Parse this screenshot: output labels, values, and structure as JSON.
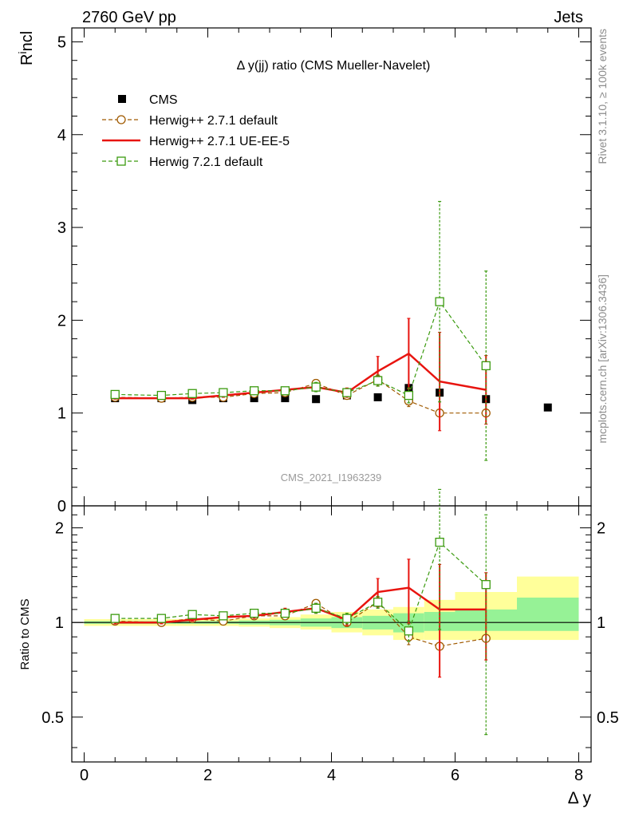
{
  "header": {
    "left": "2760 GeV pp",
    "right": "Jets"
  },
  "side_labels": {
    "rivet": "Rivet 3.1.10, ≥ 100k events",
    "mcplots": "mcplots.cern.ch [arXiv:1306.3436]"
  },
  "watermark": "CMS_2021_I1963239",
  "chart_data": [
    {
      "type": "scatter",
      "panel": "main",
      "title": "Δ y(jj) ratio (CMS Mueller-Navelet)",
      "ylabel": "R^incl",
      "xlim": [
        -0.2,
        8.2
      ],
      "ylim": [
        0,
        5.15
      ],
      "yticks": [
        0,
        1,
        2,
        3,
        4,
        5
      ],
      "grid": false,
      "legend_position": "top-left",
      "series": [
        {
          "name": "CMS",
          "kind": "data",
          "color": "#000000",
          "marker": "filled-square",
          "x": [
            0.5,
            1.25,
            1.75,
            2.25,
            2.75,
            3.25,
            3.75,
            4.25,
            4.75,
            5.25,
            5.75,
            6.5,
            7.5
          ],
          "y": [
            1.16,
            1.16,
            1.14,
            1.16,
            1.16,
            1.16,
            1.15,
            1.19,
            1.17,
            1.27,
            1.22,
            1.15,
            1.06
          ]
        },
        {
          "name": "Herwig++ 2.7.1 default",
          "kind": "mc",
          "color": "#a05a00",
          "marker": "open-circle",
          "dashed": true,
          "x": [
            0.5,
            1.25,
            1.75,
            2.25,
            2.75,
            3.25,
            3.75,
            4.25,
            4.75,
            5.25,
            5.75,
            6.5
          ],
          "y": [
            1.17,
            1.16,
            1.17,
            1.17,
            1.21,
            1.22,
            1.32,
            1.19,
            1.36,
            1.13,
            1.0,
            1.0
          ],
          "yerr": [
            0.01,
            0.01,
            0.01,
            0.01,
            0.01,
            0.02,
            0.04,
            0.04,
            0.05,
            0.06,
            0.0,
            0.0
          ]
        },
        {
          "name": "Herwig++ 2.7.1 UE-EE-5",
          "kind": "mc",
          "color": "#e8140f",
          "marker": "none",
          "dashed": false,
          "step": true,
          "x": [
            0.5,
            1.25,
            1.75,
            2.25,
            2.75,
            3.25,
            3.75,
            4.25,
            4.75,
            5.25,
            5.75,
            6.5
          ],
          "y": [
            1.16,
            1.16,
            1.16,
            1.19,
            1.22,
            1.25,
            1.28,
            1.22,
            1.45,
            1.64,
            1.34,
            1.25
          ],
          "yerr": [
            0.01,
            0.01,
            0.01,
            0.02,
            0.02,
            0.03,
            0.04,
            0.05,
            0.16,
            0.38,
            0.53,
            0.37
          ]
        },
        {
          "name": "Herwig 7.2.1 default",
          "kind": "mc",
          "color": "#3a9a0e",
          "marker": "open-square",
          "dashed": true,
          "x": [
            0.5,
            1.25,
            1.75,
            2.25,
            2.75,
            3.25,
            3.75,
            4.25,
            4.75,
            5.25,
            5.75,
            6.5
          ],
          "y": [
            1.2,
            1.19,
            1.21,
            1.22,
            1.24,
            1.24,
            1.28,
            1.22,
            1.35,
            1.19,
            2.2,
            1.51
          ],
          "yerr": [
            0.01,
            0.01,
            0.01,
            0.02,
            0.02,
            0.02,
            0.05,
            0.04,
            0.06,
            0.08,
            1.08,
            1.02
          ]
        }
      ]
    },
    {
      "type": "scatter",
      "panel": "ratio",
      "ylabel": "Ratio to CMS",
      "xlabel": "Δ y",
      "xlim": [
        -0.2,
        8.2
      ],
      "ylim": [
        0.36,
        2.35
      ],
      "yticks": [
        0.5,
        1,
        2
      ],
      "ytick_labels": [
        "0.5",
        "1",
        "2"
      ],
      "xticks": [
        0,
        2,
        4,
        6,
        8
      ],
      "xtick_labels": [
        "0",
        "2",
        "4",
        "6",
        "8"
      ],
      "log_scale_y": true,
      "reference_line": 1,
      "uncertainty_bands": {
        "edges": [
          0,
          1,
          1.5,
          2,
          2.5,
          3,
          3.5,
          4,
          4.5,
          5,
          5.5,
          6,
          7,
          8
        ],
        "stat_low": [
          0.99,
          0.99,
          0.99,
          0.99,
          0.985,
          0.98,
          0.97,
          0.96,
          0.95,
          0.93,
          0.94,
          0.94,
          0.94
        ],
        "stat_high": [
          1.01,
          1.01,
          1.01,
          1.01,
          1.015,
          1.02,
          1.03,
          1.04,
          1.05,
          1.07,
          1.08,
          1.1,
          1.2
        ],
        "total_low": [
          0.975,
          0.975,
          0.975,
          0.975,
          0.97,
          0.96,
          0.95,
          0.93,
          0.91,
          0.88,
          0.88,
          0.88,
          0.88
        ],
        "total_high": [
          1.025,
          1.025,
          1.025,
          1.025,
          1.03,
          1.04,
          1.06,
          1.08,
          1.1,
          1.12,
          1.18,
          1.25,
          1.4
        ],
        "stat_color": "#96f296",
        "total_color": "#ffff9a"
      },
      "series": [
        {
          "name": "Herwig++ 2.7.1 default",
          "color": "#a05a00",
          "marker": "open-circle",
          "dashed": true,
          "x": [
            0.5,
            1.25,
            1.75,
            2.25,
            2.75,
            3.25,
            3.75,
            4.25,
            4.75,
            5.25,
            5.75,
            6.5
          ],
          "y": [
            1.01,
            1.0,
            1.03,
            1.01,
            1.05,
            1.05,
            1.15,
            1.0,
            1.16,
            0.9,
            0.84,
            0.89
          ],
          "yerr": [
            0.01,
            0.01,
            0.01,
            0.01,
            0.01,
            0.02,
            0.03,
            0.03,
            0.04,
            0.05,
            0.0,
            0.0
          ]
        },
        {
          "name": "Herwig++ 2.7.1 UE-EE-5",
          "color": "#e8140f",
          "marker": "none",
          "dashed": false,
          "step": true,
          "x": [
            0.5,
            1.25,
            1.75,
            2.25,
            2.75,
            3.25,
            3.75,
            4.25,
            4.75,
            5.25,
            5.75,
            6.5
          ],
          "y": [
            1.0,
            1.0,
            1.02,
            1.04,
            1.05,
            1.08,
            1.11,
            1.02,
            1.25,
            1.29,
            1.1,
            1.1
          ],
          "yerr": [
            0.01,
            0.01,
            0.01,
            0.02,
            0.02,
            0.03,
            0.04,
            0.04,
            0.13,
            0.3,
            0.43,
            0.34
          ]
        },
        {
          "name": "Herwig 7.2.1 default",
          "color": "#3a9a0e",
          "marker": "open-square",
          "dashed": true,
          "x": [
            0.5,
            1.25,
            1.75,
            2.25,
            2.75,
            3.25,
            3.75,
            4.25,
            4.75,
            5.25,
            5.75,
            6.5
          ],
          "y": [
            1.03,
            1.03,
            1.06,
            1.05,
            1.07,
            1.07,
            1.11,
            1.03,
            1.16,
            0.94,
            1.8,
            1.32
          ],
          "yerr": [
            0.01,
            0.01,
            0.01,
            0.02,
            0.02,
            0.02,
            0.04,
            0.04,
            0.05,
            0.07,
            0.85,
            0.88
          ]
        }
      ]
    }
  ]
}
